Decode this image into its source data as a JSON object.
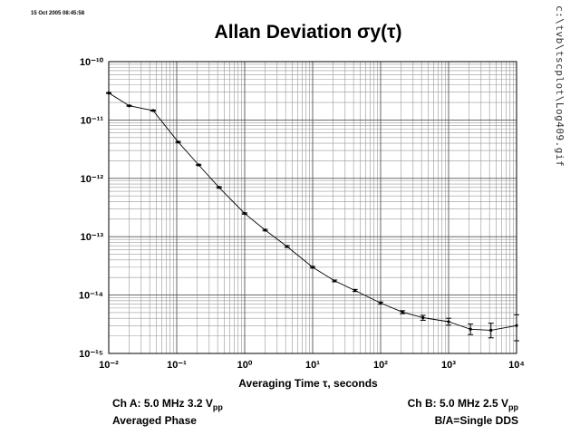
{
  "timestamp": "15 Oct 2005 08:45:58",
  "file_path": "c:\\tvb\\tscplot\\Log409.gif",
  "footer": {
    "ch_a": "Ch A: 5.0 MHz 3.2 V",
    "ch_a_sub": "pp",
    "averaged": "Averaged Phase",
    "ch_b": "Ch B: 5.0 MHz 2.5 V",
    "ch_b_sub": "pp",
    "ratio": "B/A=Single DDS"
  },
  "chart_data": {
    "type": "line",
    "title": "Allan Deviation σy(τ)",
    "xlabel": "Averaging Time τ, seconds",
    "ylabel": "",
    "x_scale": "log",
    "y_scale": "log",
    "xlim": [
      0.01,
      10000
    ],
    "ylim": [
      1e-15,
      1e-10
    ],
    "grid": true,
    "x_ticks": [
      0.01,
      0.1,
      1,
      10,
      100,
      1000,
      10000
    ],
    "x_tick_labels": [
      "10⁻²",
      "10⁻¹",
      "10⁰",
      "10¹",
      "10²",
      "10³",
      "10⁴"
    ],
    "y_ticks": [
      1e-10,
      1e-11,
      1e-12,
      1e-13,
      1e-14,
      1e-15
    ],
    "y_tick_labels": [
      "10⁻¹⁰",
      "10⁻¹¹",
      "10⁻¹²",
      "10⁻¹³",
      "10⁻¹⁴",
      "10⁻¹⁵"
    ],
    "series": [
      {
        "x": [
          0.01,
          0.02,
          0.045,
          0.105,
          0.21,
          0.42,
          1.0,
          2.0,
          4.2,
          10,
          21,
          42,
          100,
          210,
          420,
          1000,
          2100,
          4200,
          10000
        ],
        "y": [
          2.9e-11,
          1.75e-11,
          1.45e-11,
          4.2e-12,
          1.7e-12,
          7e-13,
          2.5e-13,
          1.3e-13,
          6.8e-14,
          3e-14,
          1.75e-14,
          1.2e-14,
          7.3e-15,
          5.1e-15,
          4.1e-15,
          3.5e-15,
          2.6e-15,
          2.5e-15,
          3e-15
        ],
        "y_err_low": [
          2.85e-11,
          1.72e-11,
          1.42e-11,
          4.1e-12,
          1.66e-12,
          6.8e-13,
          2.44e-13,
          1.26e-13,
          6.55e-14,
          2.9e-14,
          1.69e-14,
          1.15e-14,
          7e-15,
          4.8e-15,
          3.7e-15,
          3.05e-15,
          2.1e-15,
          1.85e-15,
          1.65e-15
        ],
        "y_err_high": [
          2.95e-11,
          1.78e-11,
          1.48e-11,
          4.3e-12,
          1.74e-12,
          7.2e-13,
          2.56e-13,
          1.34e-13,
          7.05e-14,
          3.1e-14,
          1.81e-14,
          1.25e-14,
          7.6e-15,
          5.4e-15,
          4.5e-15,
          4e-15,
          3.2e-15,
          3.3e-15,
          4.6e-15
        ]
      }
    ]
  }
}
